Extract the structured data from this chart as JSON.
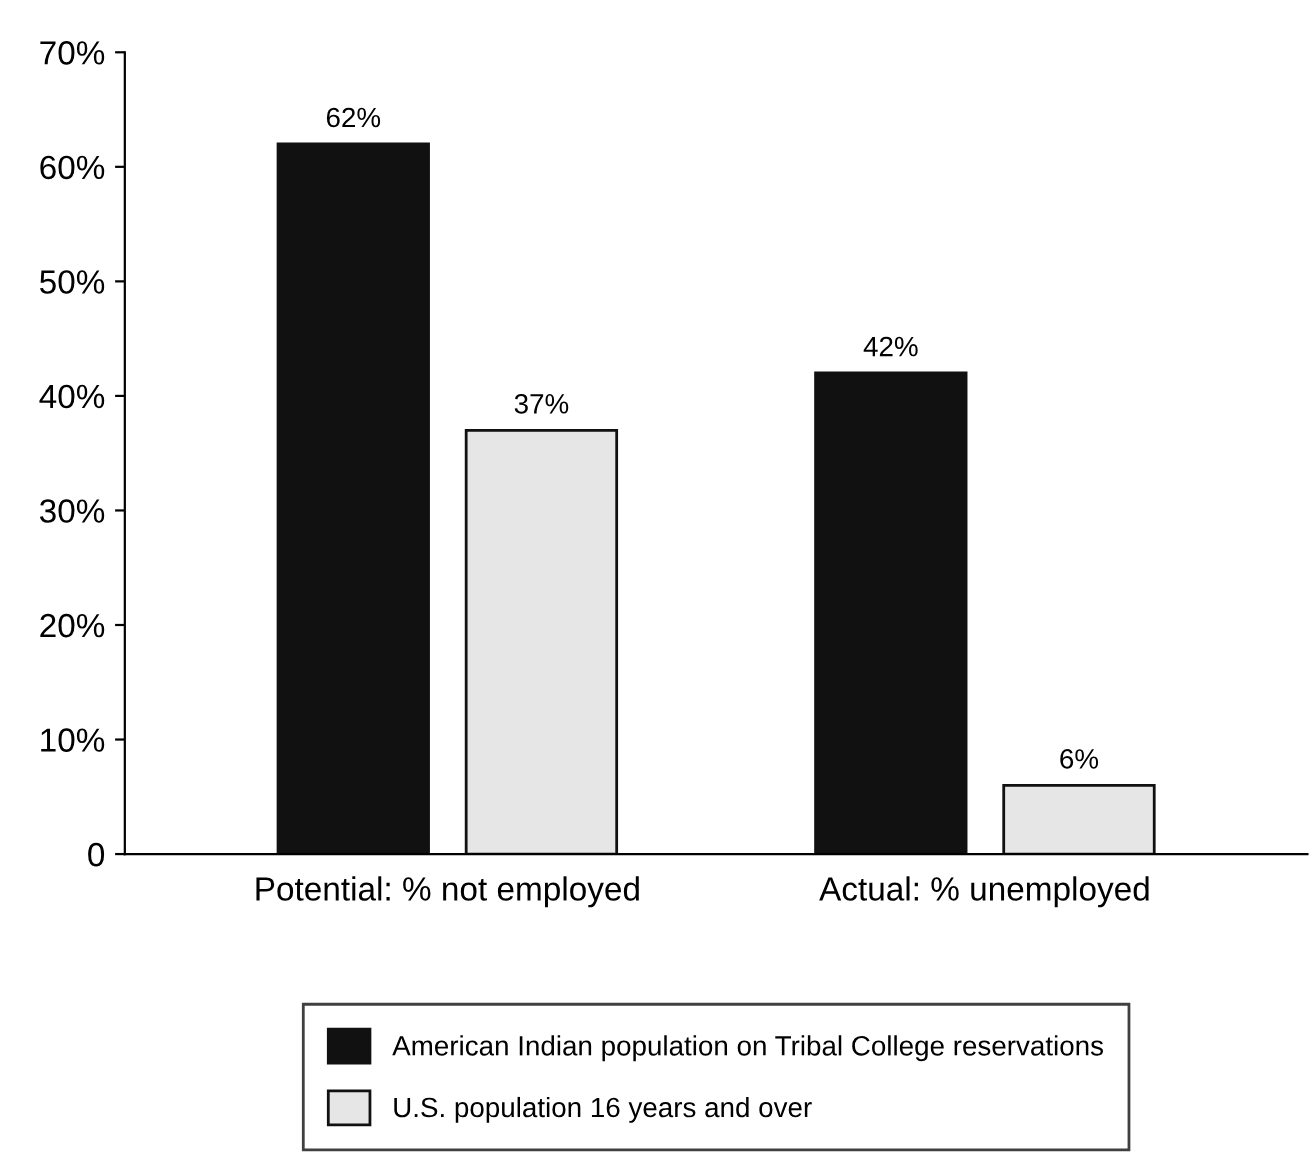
{
  "chart_data": {
    "type": "bar",
    "categories": [
      "Potential: % not employed",
      "Actual: % unemployed"
    ],
    "series": [
      {
        "name": "American Indian population on Tribal College reservations",
        "color": "#111111",
        "values": [
          62,
          42
        ],
        "value_labels": [
          "62%",
          "42%"
        ]
      },
      {
        "name": "U.S. population 16 years and over",
        "color": "#e6e6e6",
        "values": [
          37,
          6
        ],
        "value_labels": [
          "37%",
          "6%"
        ]
      }
    ],
    "ylim": [
      0,
      70
    ],
    "yticks": [
      {
        "value": 0,
        "label": "0"
      },
      {
        "value": 10,
        "label": "10%"
      },
      {
        "value": 20,
        "label": "20%"
      },
      {
        "value": 30,
        "label": "30%"
      },
      {
        "value": 40,
        "label": "40%"
      },
      {
        "value": 50,
        "label": "50%"
      },
      {
        "value": 60,
        "label": "60%"
      },
      {
        "value": 70,
        "label": "70%"
      }
    ],
    "grid": false,
    "legend": "bottom"
  }
}
